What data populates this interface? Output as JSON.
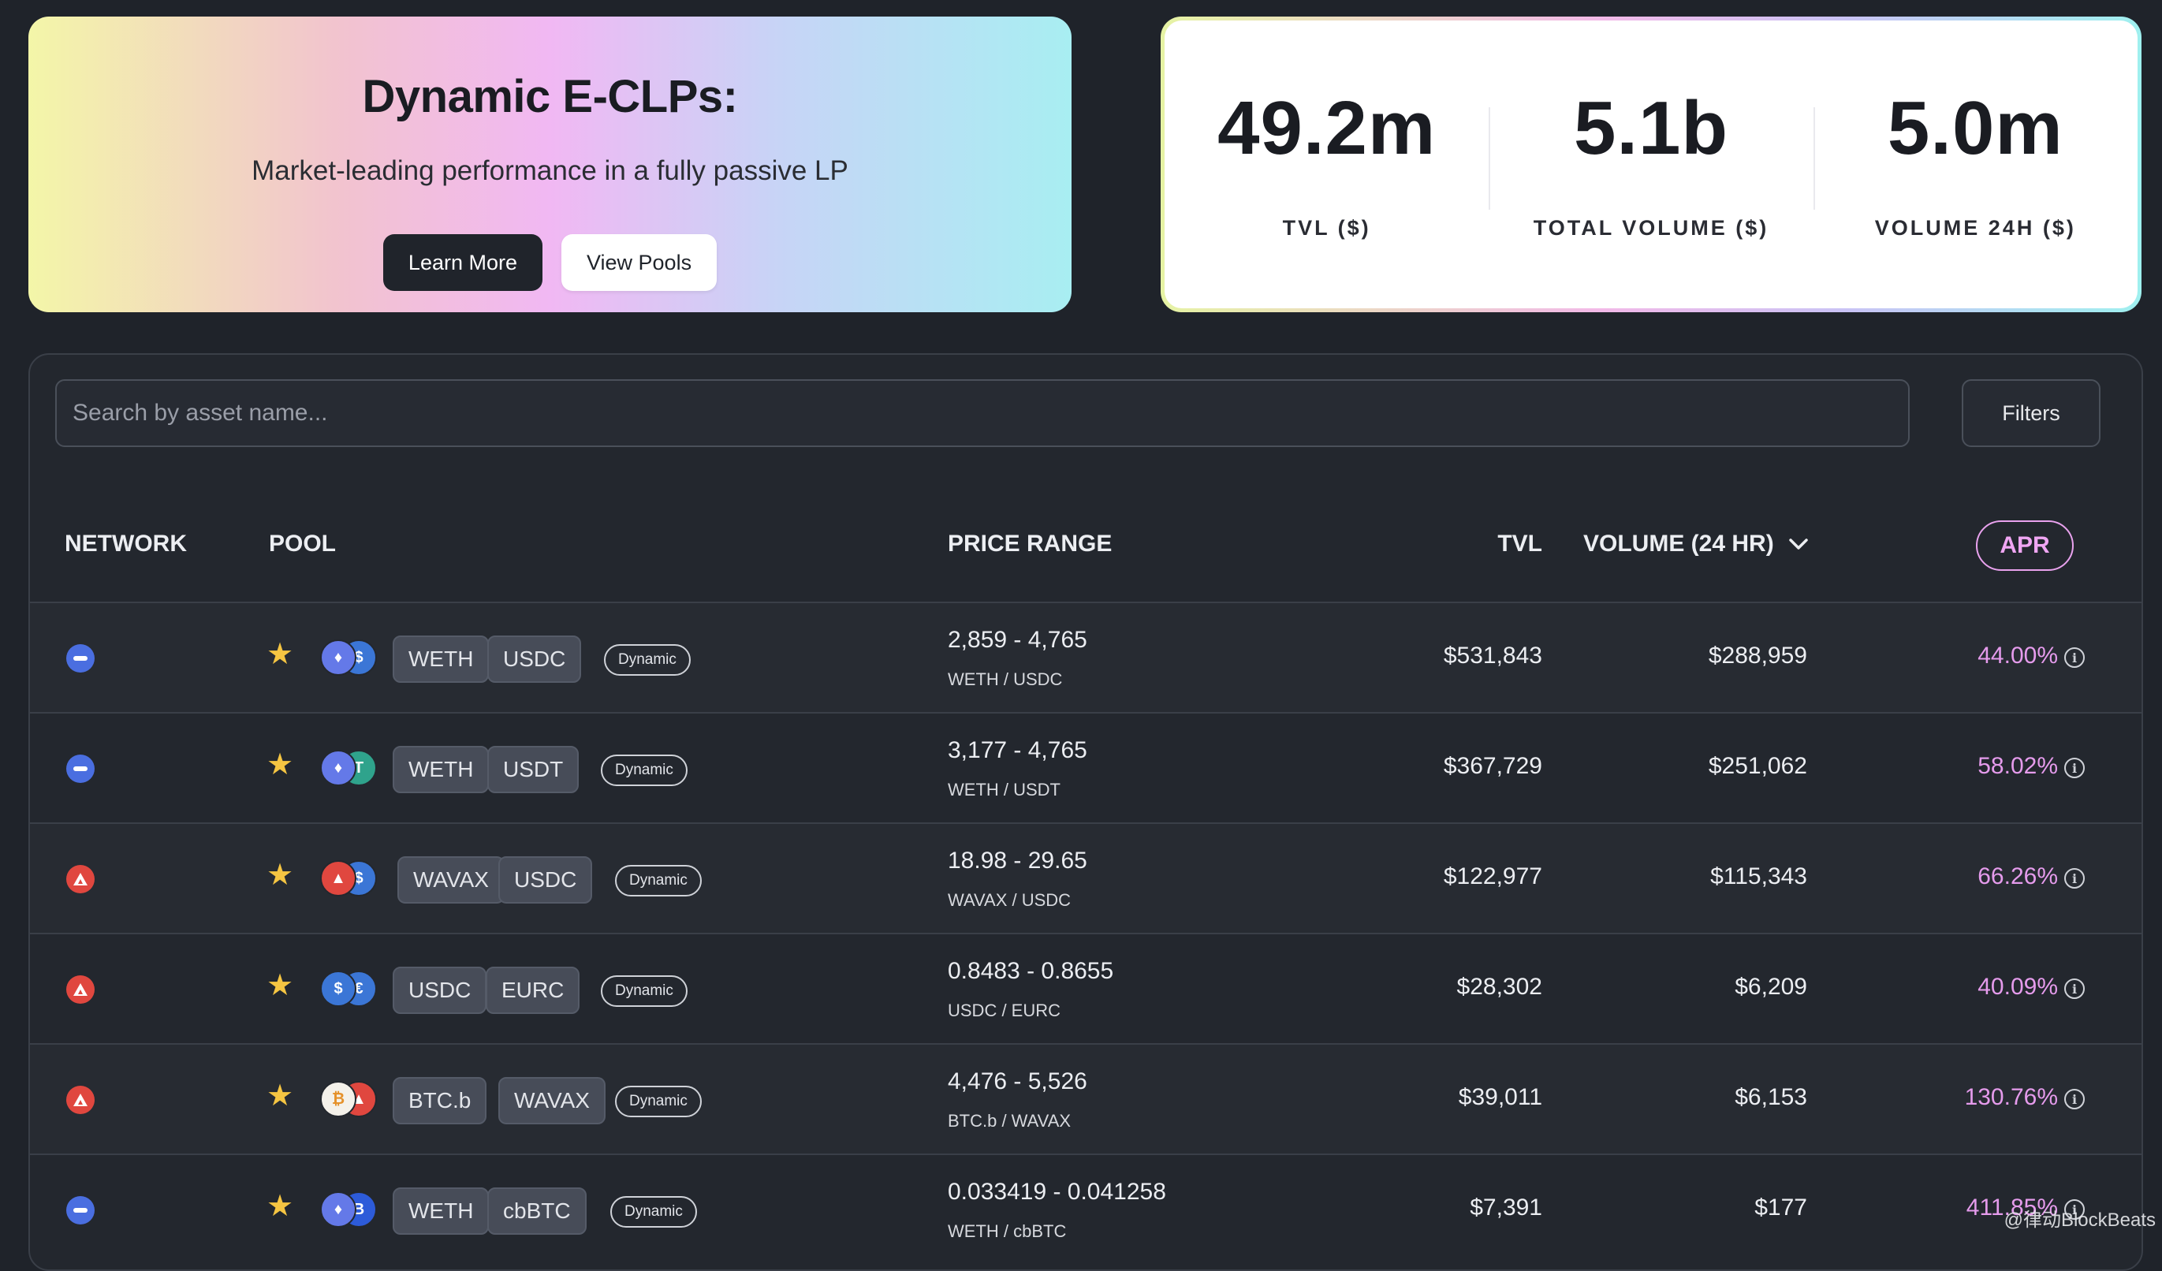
{
  "hero": {
    "title": "Dynamic E-CLPs:",
    "subtitle": "Market-leading performance in a fully passive LP",
    "learn_more": "Learn More",
    "view_pools": "View Pools"
  },
  "stats": [
    {
      "value": "49.2m",
      "label": "TVL ($)"
    },
    {
      "value": "5.1b",
      "label": "TOTAL VOLUME ($)"
    },
    {
      "value": "5.0m",
      "label": "VOLUME 24H ($)"
    }
  ],
  "search": {
    "placeholder": "Search by asset name..."
  },
  "filters_label": "Filters",
  "columns": {
    "network": "NETWORK",
    "pool": "POOL",
    "price_range": "PRICE RANGE",
    "tvl": "TVL",
    "volume": "VOLUME (24 HR)",
    "apr": "APR"
  },
  "rows": [
    {
      "network": "ethereum",
      "token_a": "WETH",
      "token_b": "USDC",
      "badge": "Dynamic",
      "range": "2,859 - 4,765",
      "pair": "WETH / USDC",
      "tvl": "$531,843",
      "volume": "$288,959",
      "apr": "44.00%"
    },
    {
      "network": "ethereum",
      "token_a": "WETH",
      "token_b": "USDT",
      "badge": "Dynamic",
      "range": "3,177 - 4,765",
      "pair": "WETH / USDT",
      "tvl": "$367,729",
      "volume": "$251,062",
      "apr": "58.02%"
    },
    {
      "network": "avalanche",
      "token_a": "WAVAX",
      "token_b": "USDC",
      "badge": "Dynamic",
      "range": "18.98 - 29.65",
      "pair": "WAVAX / USDC",
      "tvl": "$122,977",
      "volume": "$115,343",
      "apr": "66.26%"
    },
    {
      "network": "avalanche",
      "token_a": "USDC",
      "token_b": "EURC",
      "badge": "Dynamic",
      "range": "0.8483 - 0.8655",
      "pair": "USDC / EURC",
      "tvl": "$28,302",
      "volume": "$6,209",
      "apr": "40.09%"
    },
    {
      "network": "avalanche",
      "token_a": "BTC.b",
      "token_b": "WAVAX",
      "badge": "Dynamic",
      "range": "4,476 - 5,526",
      "pair": "BTC.b / WAVAX",
      "tvl": "$39,011",
      "volume": "$6,153",
      "apr": "130.76%"
    },
    {
      "network": "ethereum",
      "token_a": "WETH",
      "token_b": "cbBTC",
      "badge": "Dynamic",
      "range": "0.033419 - 0.041258",
      "pair": "WETH / cbBTC",
      "tvl": "$7,391",
      "volume": "$177",
      "apr": "411.85%"
    }
  ],
  "watermark": "@律动BlockBeats",
  "colors": {
    "accent_pink": "#e59bec",
    "background": "#1f232a",
    "eth_blue": "#4a6ee0",
    "avax_red": "#e0473f"
  }
}
